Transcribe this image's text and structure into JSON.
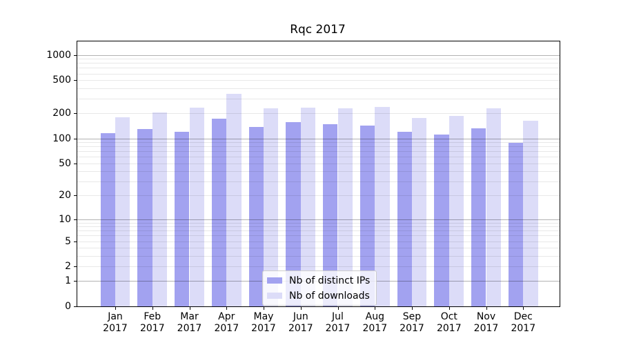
{
  "chart_data": {
    "type": "bar",
    "title": "Rqc 2017",
    "categories": [
      "Jan",
      "Feb",
      "Mar",
      "Apr",
      "May",
      "Jun",
      "Jul",
      "Aug",
      "Sep",
      "Oct",
      "Nov",
      "Dec"
    ],
    "year_label": "2017",
    "series": [
      {
        "name": "Nb of distinct IPs",
        "color": "#a2a2f0",
        "values": [
          115,
          130,
          121,
          173,
          137,
          158,
          148,
          142,
          120,
          111,
          133,
          89
        ]
      },
      {
        "name": "Nb of downloads",
        "color": "#dcdcf8",
        "values": [
          181,
          206,
          233,
          345,
          228,
          234,
          228,
          241,
          176,
          185,
          230,
          163
        ]
      }
    ],
    "xlabel": "",
    "ylabel": "",
    "yscale": "log1p",
    "ylim": [
      0,
      1450
    ],
    "yticks": [
      1000,
      500,
      200,
      100,
      50,
      20,
      10,
      5,
      2,
      1,
      0
    ],
    "grid": {
      "major": [
        1,
        10,
        100,
        1000
      ],
      "minor_subs": [
        2,
        3,
        4,
        5,
        6,
        7,
        8,
        9
      ],
      "minor_decades": [
        1,
        10,
        100
      ],
      "grid_on": true
    },
    "legend_position": "lower center",
    "axis_color": "#000000",
    "grid_major_color": "#b0b0b0",
    "grid_minor_color": "#e8e8e8"
  }
}
